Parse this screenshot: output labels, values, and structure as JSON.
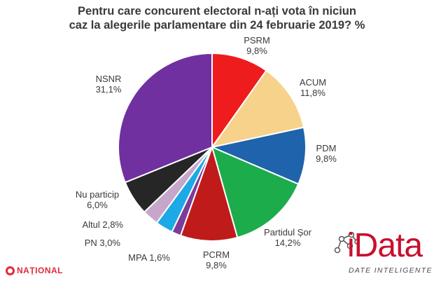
{
  "title_lines": [
    "Pentru care concurent electoral n-ați vota în niciun",
    "caz la alegerile parlamentare din 24 februarie 2019? %"
  ],
  "chart_data": {
    "type": "pie",
    "title": "Pentru care concurent electoral n-ați vota în niciun caz la alegerile parlamentare din 24 februarie 2019? %",
    "slices": [
      {
        "name": "PSRM",
        "value": 9.8,
        "label": "9,8%",
        "color": "#ee1c1c"
      },
      {
        "name": "ACUM",
        "value": 11.8,
        "label": "11,8%",
        "color": "#f6d28b"
      },
      {
        "name": "PDM",
        "value": 9.8,
        "label": "9,8%",
        "color": "#1f63ad"
      },
      {
        "name": "Partidul Șor",
        "value": 14.2,
        "label": "14,2%",
        "color": "#1cac4b"
      },
      {
        "name": "PCRM",
        "value": 9.8,
        "label": "9,8%",
        "color": "#bf1b1b"
      },
      {
        "name": "MPA",
        "value": 1.6,
        "label": "1,6%",
        "color": "#7d3c98"
      },
      {
        "name": "PN",
        "value": 3.0,
        "label": "3,0%",
        "color": "#1ca9e6"
      },
      {
        "name": "Altul",
        "value": 2.8,
        "label": "2,8%",
        "color": "#c7a6cc"
      },
      {
        "name": "Nu particip",
        "value": 6.0,
        "label": "6,0%",
        "color": "#262626"
      },
      {
        "name": "NSNR",
        "value": 31.1,
        "label": "31,1%",
        "color": "#7030a0"
      }
    ]
  },
  "branding": {
    "national": "NAȚIONAL",
    "logo_word": "iData",
    "logo_tagline": "DATE INTELIGENTE"
  }
}
